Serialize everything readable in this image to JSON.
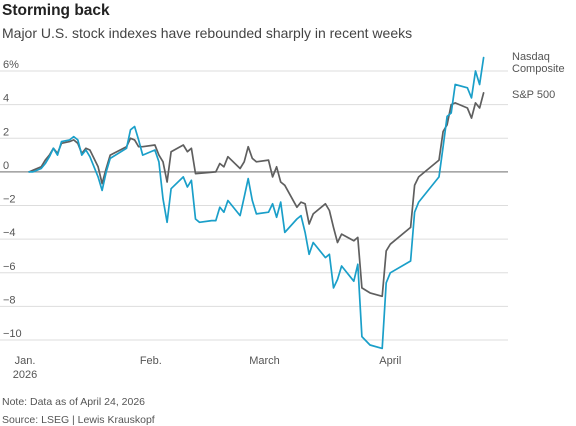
{
  "header": {
    "title": "Storming back",
    "subtitle": "Major U.S. stock indexes have rebounded sharply in recent weeks"
  },
  "footer": {
    "note": "Note: Data as of April 24, 2026",
    "source": "Source: LSEG | Lewis Krauskopf"
  },
  "colors": {
    "nasdaq": "#1a9fc9",
    "sp500": "#5f5f5f",
    "grid": "#dddddd",
    "zero_line": "#8a8a8a"
  },
  "chart_data": {
    "type": "line",
    "title": "Storming back",
    "ylabel": "",
    "xlabel": "",
    "ylim": [
      -10.5,
      7
    ],
    "y_ticks": [
      6,
      4,
      2,
      0,
      -2,
      -4,
      -6,
      -8,
      -10
    ],
    "y_tick_labels": [
      "6%",
      "4",
      "2",
      "0",
      "−2",
      "−4",
      "−6",
      "−8",
      "−10"
    ],
    "x_tick_labels": [
      {
        "label": "Jan.",
        "sub": "2026",
        "date": "2026-01-01"
      },
      {
        "label": "Feb.",
        "sub": "",
        "date": "2026-02-01"
      },
      {
        "label": "March",
        "sub": "",
        "date": "2026-03-01"
      },
      {
        "label": "April",
        "sub": "",
        "date": "2026-04-01"
      }
    ],
    "xlim": [
      "2026-01-01",
      "2026-04-30"
    ],
    "grid": true,
    "legend": "end-of-line labels",
    "series": [
      {
        "name": "Nasdaq Composite",
        "label_lines": [
          "Nasdaq",
          "Composite"
        ],
        "color": "#1a9fc9",
        "points": [
          [
            "2026-01-02",
            0.0
          ],
          [
            "2026-01-03",
            0.0
          ],
          [
            "2026-01-05",
            0.2
          ],
          [
            "2026-01-06",
            0.5
          ],
          [
            "2026-01-07",
            0.9
          ],
          [
            "2026-01-08",
            1.4
          ],
          [
            "2026-01-09",
            1.0
          ],
          [
            "2026-01-10",
            1.8
          ],
          [
            "2026-01-12",
            1.9
          ],
          [
            "2026-01-13",
            2.1
          ],
          [
            "2026-01-14",
            1.9
          ],
          [
            "2026-01-15",
            1.0
          ],
          [
            "2026-01-16",
            1.3
          ],
          [
            "2026-01-17",
            0.9
          ],
          [
            "2026-01-19",
            -0.3
          ],
          [
            "2026-01-20",
            -1.1
          ],
          [
            "2026-01-21",
            0.0
          ],
          [
            "2026-01-22",
            0.8
          ],
          [
            "2026-01-26",
            1.4
          ],
          [
            "2026-01-27",
            2.5
          ],
          [
            "2026-01-28",
            2.7
          ],
          [
            "2026-01-29",
            1.9
          ],
          [
            "2026-01-30",
            1.0
          ],
          [
            "2026-02-02",
            1.3
          ],
          [
            "2026-02-03",
            0.6
          ],
          [
            "2026-02-04",
            -1.6
          ],
          [
            "2026-02-05",
            -3.0
          ],
          [
            "2026-02-06",
            -1.0
          ],
          [
            "2026-02-09",
            -0.3
          ],
          [
            "2026-02-10",
            -0.9
          ],
          [
            "2026-02-11",
            -0.5
          ],
          [
            "2026-02-12",
            -2.8
          ],
          [
            "2026-02-13",
            -3.0
          ],
          [
            "2026-02-16",
            -2.9
          ],
          [
            "2026-02-17",
            -2.9
          ],
          [
            "2026-02-18",
            -2.1
          ],
          [
            "2026-02-19",
            -2.4
          ],
          [
            "2026-02-20",
            -1.7
          ],
          [
            "2026-02-23",
            -2.6
          ],
          [
            "2026-02-24",
            -1.5
          ],
          [
            "2026-02-25",
            -0.4
          ],
          [
            "2026-02-26",
            -1.7
          ],
          [
            "2026-02-27",
            -2.5
          ],
          [
            "2026-03-02",
            -2.4
          ],
          [
            "2026-03-03",
            -1.9
          ],
          [
            "2026-03-04",
            -2.7
          ],
          [
            "2026-03-05",
            -1.8
          ],
          [
            "2026-03-06",
            -3.6
          ],
          [
            "2026-03-09",
            -2.8
          ],
          [
            "2026-03-10",
            -2.6
          ],
          [
            "2026-03-11",
            -3.6
          ],
          [
            "2026-03-12",
            -4.9
          ],
          [
            "2026-03-13",
            -4.2
          ],
          [
            "2026-03-16",
            -5.1
          ],
          [
            "2026-03-17",
            -4.9
          ],
          [
            "2026-03-18",
            -6.9
          ],
          [
            "2026-03-19",
            -6.4
          ],
          [
            "2026-03-20",
            -5.6
          ],
          [
            "2026-03-23",
            -6.5
          ],
          [
            "2026-03-24",
            -5.5
          ],
          [
            "2026-03-25",
            -9.8
          ],
          [
            "2026-03-27",
            -10.3
          ],
          [
            "2026-03-30",
            -10.5
          ],
          [
            "2026-03-31",
            -6.6
          ],
          [
            "2026-04-01",
            -6.0
          ],
          [
            "2026-04-06",
            -5.3
          ],
          [
            "2026-04-07",
            -2.4
          ],
          [
            "2026-04-08",
            -1.8
          ],
          [
            "2026-04-13",
            -0.3
          ],
          [
            "2026-04-14",
            1.5
          ],
          [
            "2026-04-15",
            3.3
          ],
          [
            "2026-04-16",
            3.5
          ],
          [
            "2026-04-17",
            5.2
          ],
          [
            "2026-04-20",
            5.0
          ],
          [
            "2026-04-21",
            4.4
          ],
          [
            "2026-04-22",
            6.0
          ],
          [
            "2026-04-23",
            5.2
          ],
          [
            "2026-04-24",
            6.8
          ]
        ]
      },
      {
        "name": "S&P 500",
        "label_lines": [
          "S&P 500"
        ],
        "color": "#5f5f5f",
        "points": [
          [
            "2026-01-02",
            0.0
          ],
          [
            "2026-01-03",
            0.1
          ],
          [
            "2026-01-05",
            0.3
          ],
          [
            "2026-01-06",
            0.7
          ],
          [
            "2026-01-07",
            1.0
          ],
          [
            "2026-01-08",
            1.4
          ],
          [
            "2026-01-09",
            1.1
          ],
          [
            "2026-01-10",
            1.7
          ],
          [
            "2026-01-12",
            1.8
          ],
          [
            "2026-01-13",
            1.9
          ],
          [
            "2026-01-14",
            1.7
          ],
          [
            "2026-01-15",
            1.1
          ],
          [
            "2026-01-16",
            1.4
          ],
          [
            "2026-01-17",
            1.3
          ],
          [
            "2026-01-19",
            0.3
          ],
          [
            "2026-01-20",
            -0.7
          ],
          [
            "2026-01-21",
            0.2
          ],
          [
            "2026-01-22",
            1.0
          ],
          [
            "2026-01-26",
            1.5
          ],
          [
            "2026-01-27",
            2.0
          ],
          [
            "2026-01-28",
            1.9
          ],
          [
            "2026-01-29",
            1.5
          ],
          [
            "2026-01-30",
            1.5
          ],
          [
            "2026-02-02",
            1.6
          ],
          [
            "2026-02-03",
            1.0
          ],
          [
            "2026-02-04",
            0.6
          ],
          [
            "2026-02-05",
            -0.6
          ],
          [
            "2026-02-06",
            1.2
          ],
          [
            "2026-02-09",
            1.6
          ],
          [
            "2026-02-10",
            1.2
          ],
          [
            "2026-02-11",
            1.4
          ],
          [
            "2026-02-12",
            -0.1
          ],
          [
            "2026-02-17",
            0.0
          ],
          [
            "2026-02-18",
            0.5
          ],
          [
            "2026-02-19",
            0.3
          ],
          [
            "2026-02-20",
            0.9
          ],
          [
            "2026-02-23",
            0.2
          ],
          [
            "2026-02-24",
            0.6
          ],
          [
            "2026-02-25",
            1.5
          ],
          [
            "2026-02-26",
            0.8
          ],
          [
            "2026-02-27",
            0.6
          ],
          [
            "2026-03-02",
            0.7
          ],
          [
            "2026-03-03",
            -0.3
          ],
          [
            "2026-03-04",
            0.3
          ],
          [
            "2026-03-05",
            -0.6
          ],
          [
            "2026-03-06",
            -0.8
          ],
          [
            "2026-03-09",
            -2.1
          ],
          [
            "2026-03-10",
            -1.8
          ],
          [
            "2026-03-11",
            -1.9
          ],
          [
            "2026-03-12",
            -3.1
          ],
          [
            "2026-03-13",
            -2.5
          ],
          [
            "2026-03-16",
            -1.9
          ],
          [
            "2026-03-17",
            -2.3
          ],
          [
            "2026-03-18",
            -3.3
          ],
          [
            "2026-03-19",
            -4.2
          ],
          [
            "2026-03-20",
            -3.7
          ],
          [
            "2026-03-23",
            -4.1
          ],
          [
            "2026-03-24",
            -3.9
          ],
          [
            "2026-03-25",
            -6.9
          ],
          [
            "2026-03-27",
            -7.2
          ],
          [
            "2026-03-30",
            -7.4
          ],
          [
            "2026-03-31",
            -4.7
          ],
          [
            "2026-04-01",
            -4.3
          ],
          [
            "2026-04-06",
            -3.3
          ],
          [
            "2026-04-07",
            -0.8
          ],
          [
            "2026-04-08",
            -0.3
          ],
          [
            "2026-04-13",
            0.7
          ],
          [
            "2026-04-14",
            2.4
          ],
          [
            "2026-04-15",
            2.8
          ],
          [
            "2026-04-16",
            4.0
          ],
          [
            "2026-04-17",
            4.1
          ],
          [
            "2026-04-20",
            3.8
          ],
          [
            "2026-04-21",
            3.2
          ],
          [
            "2026-04-22",
            4.1
          ],
          [
            "2026-04-23",
            3.8
          ],
          [
            "2026-04-24",
            4.7
          ]
        ]
      }
    ]
  }
}
